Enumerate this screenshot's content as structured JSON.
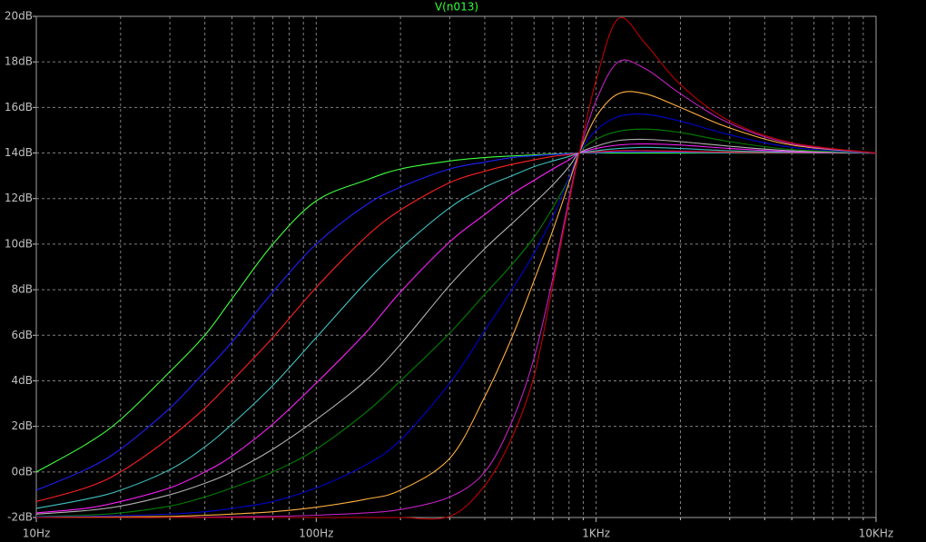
{
  "chart_data": {
    "type": "line",
    "title": "V(n013)",
    "title_color": "#33ff33",
    "log_x": true,
    "grid": true,
    "xlim": [
      10,
      10000
    ],
    "ylim": [
      -2,
      20
    ],
    "xticks": [
      {
        "value": 10,
        "label": "10Hz"
      },
      {
        "value": 100,
        "label": "100Hz"
      },
      {
        "value": 1000,
        "label": "1KHz"
      },
      {
        "value": 10000,
        "label": "10KHz"
      }
    ],
    "x_minor_ticks": [
      20,
      30,
      40,
      50,
      60,
      70,
      80,
      90,
      200,
      300,
      400,
      500,
      600,
      700,
      800,
      900,
      2000,
      3000,
      4000,
      5000,
      6000,
      7000,
      8000,
      9000
    ],
    "yticks": [
      {
        "value": -2,
        "label": "-2dB"
      },
      {
        "value": 0,
        "label": "0dB"
      },
      {
        "value": 2,
        "label": "2dB"
      },
      {
        "value": 4,
        "label": "4dB"
      },
      {
        "value": 6,
        "label": "6dB"
      },
      {
        "value": 8,
        "label": "8dB"
      },
      {
        "value": 10,
        "label": "10dB"
      },
      {
        "value": 12,
        "label": "12dB"
      },
      {
        "value": 14,
        "label": "14dB"
      },
      {
        "value": 16,
        "label": "16dB"
      },
      {
        "value": 18,
        "label": "18dB"
      },
      {
        "value": 20,
        "label": "20dB"
      }
    ],
    "x": [
      10,
      15,
      20,
      30,
      40,
      50,
      70,
      100,
      150,
      200,
      300,
      400,
      500,
      600,
      700,
      800,
      870,
      1000,
      1200,
      1500,
      2000,
      3000,
      5000,
      10000
    ],
    "series": [
      {
        "color": "#40ff40",
        "values": [
          0,
          1.2,
          2.3,
          4.4,
          6.0,
          7.6,
          10.0,
          11.9,
          12.8,
          13.3,
          13.65,
          13.8,
          13.87,
          13.92,
          13.95,
          13.98,
          14,
          14,
          14,
          14,
          14,
          14,
          14,
          14
        ]
      },
      {
        "color": "#2020ff",
        "values": [
          -0.8,
          0.1,
          1.0,
          2.8,
          4.4,
          5.7,
          7.9,
          10.0,
          11.7,
          12.5,
          13.3,
          13.6,
          13.8,
          13.88,
          13.93,
          13.97,
          14,
          14.02,
          14.05,
          14.05,
          14.04,
          14.02,
          14.01,
          14
        ]
      },
      {
        "color": "#ff2020",
        "values": [
          -1.3,
          -0.7,
          0,
          1.5,
          2.8,
          4.0,
          5.9,
          8.1,
          10.3,
          11.5,
          12.7,
          13.2,
          13.5,
          13.7,
          13.85,
          13.93,
          14,
          14.05,
          14.1,
          14.1,
          14.08,
          14.04,
          14.01,
          14
        ]
      },
      {
        "color": "#40c0c0",
        "values": [
          -1.6,
          -1.2,
          -0.8,
          0.1,
          1.1,
          2.1,
          3.8,
          5.9,
          8.3,
          9.8,
          11.6,
          12.5,
          13.0,
          13.4,
          13.65,
          13.85,
          14,
          14.1,
          14.2,
          14.25,
          14.2,
          14.1,
          14.03,
          14
        ]
      },
      {
        "color": "#ff20ff",
        "values": [
          -1.8,
          -1.6,
          -1.3,
          -0.7,
          0,
          0.7,
          2.1,
          3.9,
          6.1,
          7.9,
          10.1,
          11.3,
          12.2,
          12.8,
          13.3,
          13.7,
          14,
          14.2,
          14.35,
          14.4,
          14.35,
          14.2,
          14.06,
          14
        ]
      },
      {
        "color": "#b0b0b0",
        "values": [
          -1.85,
          -1.7,
          -1.5,
          -1.0,
          -0.5,
          0,
          1.0,
          2.3,
          4.0,
          5.6,
          8.2,
          9.8,
          10.9,
          11.8,
          12.6,
          13.4,
          14,
          14.3,
          14.55,
          14.6,
          14.5,
          14.3,
          14.1,
          14
        ]
      },
      {
        "color": "#008000",
        "values": [
          -1.95,
          -1.9,
          -1.8,
          -1.5,
          -1.1,
          -0.7,
          0,
          1.0,
          2.6,
          4.0,
          6.1,
          7.8,
          9.1,
          10.3,
          11.6,
          12.9,
          14,
          14.6,
          14.95,
          15.05,
          14.9,
          14.5,
          14.15,
          14
        ]
      },
      {
        "color": "#0000d0",
        "values": [
          -1.97,
          -1.95,
          -1.92,
          -1.85,
          -1.75,
          -1.6,
          -1.3,
          -0.7,
          0.3,
          1.4,
          3.9,
          6.2,
          8.0,
          9.6,
          11.2,
          12.9,
          14,
          15.0,
          15.6,
          15.7,
          15.4,
          14.8,
          14.25,
          14
        ]
      },
      {
        "color": "#ffb040",
        "values": [
          -2,
          -1.98,
          -1.97,
          -1.95,
          -1.9,
          -1.85,
          -1.75,
          -1.55,
          -1.2,
          -0.8,
          0.6,
          3.3,
          5.9,
          8.4,
          10.6,
          12.7,
          14,
          15.6,
          16.6,
          16.6,
          16.0,
          15.1,
          14.35,
          14
        ]
      },
      {
        "color": "#c020c0",
        "values": [
          -2,
          -2,
          -2,
          -2,
          -1.98,
          -1.97,
          -1.95,
          -1.9,
          -1.8,
          -1.65,
          -1.1,
          0,
          2.2,
          5.0,
          8.5,
          12.0,
          14,
          16.3,
          18.0,
          17.7,
          16.6,
          15.3,
          14.4,
          14
        ]
      },
      {
        "color": "#c00000",
        "values": [
          -2,
          -2,
          -2,
          -2,
          -2,
          -2,
          -2,
          -2,
          -2,
          -2,
          -1.95,
          -0.6,
          1.5,
          4.2,
          8.2,
          11.8,
          14,
          17.2,
          19.9,
          18.8,
          17.0,
          15.4,
          14.45,
          14
        ]
      }
    ]
  }
}
